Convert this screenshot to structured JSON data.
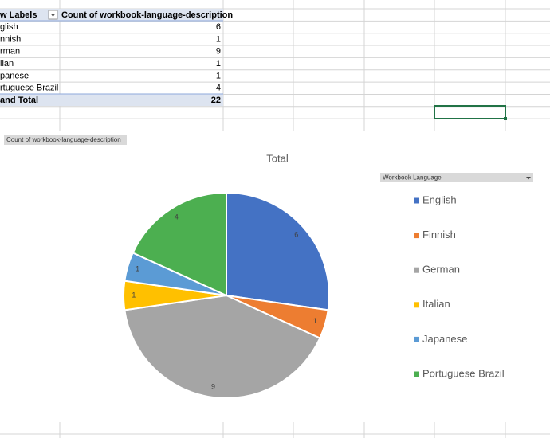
{
  "table": {
    "header": [
      "w Labels",
      "Count of workbook-language-description"
    ],
    "rows": [
      [
        "glish",
        6
      ],
      [
        "nnish",
        1
      ],
      [
        "rman",
        9
      ],
      [
        "lian",
        1
      ],
      [
        "panese",
        1
      ],
      [
        "rtuguese Brazil",
        4
      ]
    ],
    "total": [
      "and Total",
      22
    ]
  },
  "chart_data": {
    "type": "pie",
    "field_button": "Count of workbook-language-description",
    "title": "Total",
    "legend_title": "Workbook Language",
    "legend": "right",
    "categories": [
      "English",
      "Finnish",
      "German",
      "Italian",
      "Japanese",
      "Portuguese Brazil"
    ],
    "values": [
      6,
      1,
      9,
      1,
      1,
      4
    ],
    "colors": [
      "#4472c4",
      "#ed7d31",
      "#a5a5a5",
      "#ffc000",
      "#5b9bd5",
      "#4caf50"
    ]
  }
}
